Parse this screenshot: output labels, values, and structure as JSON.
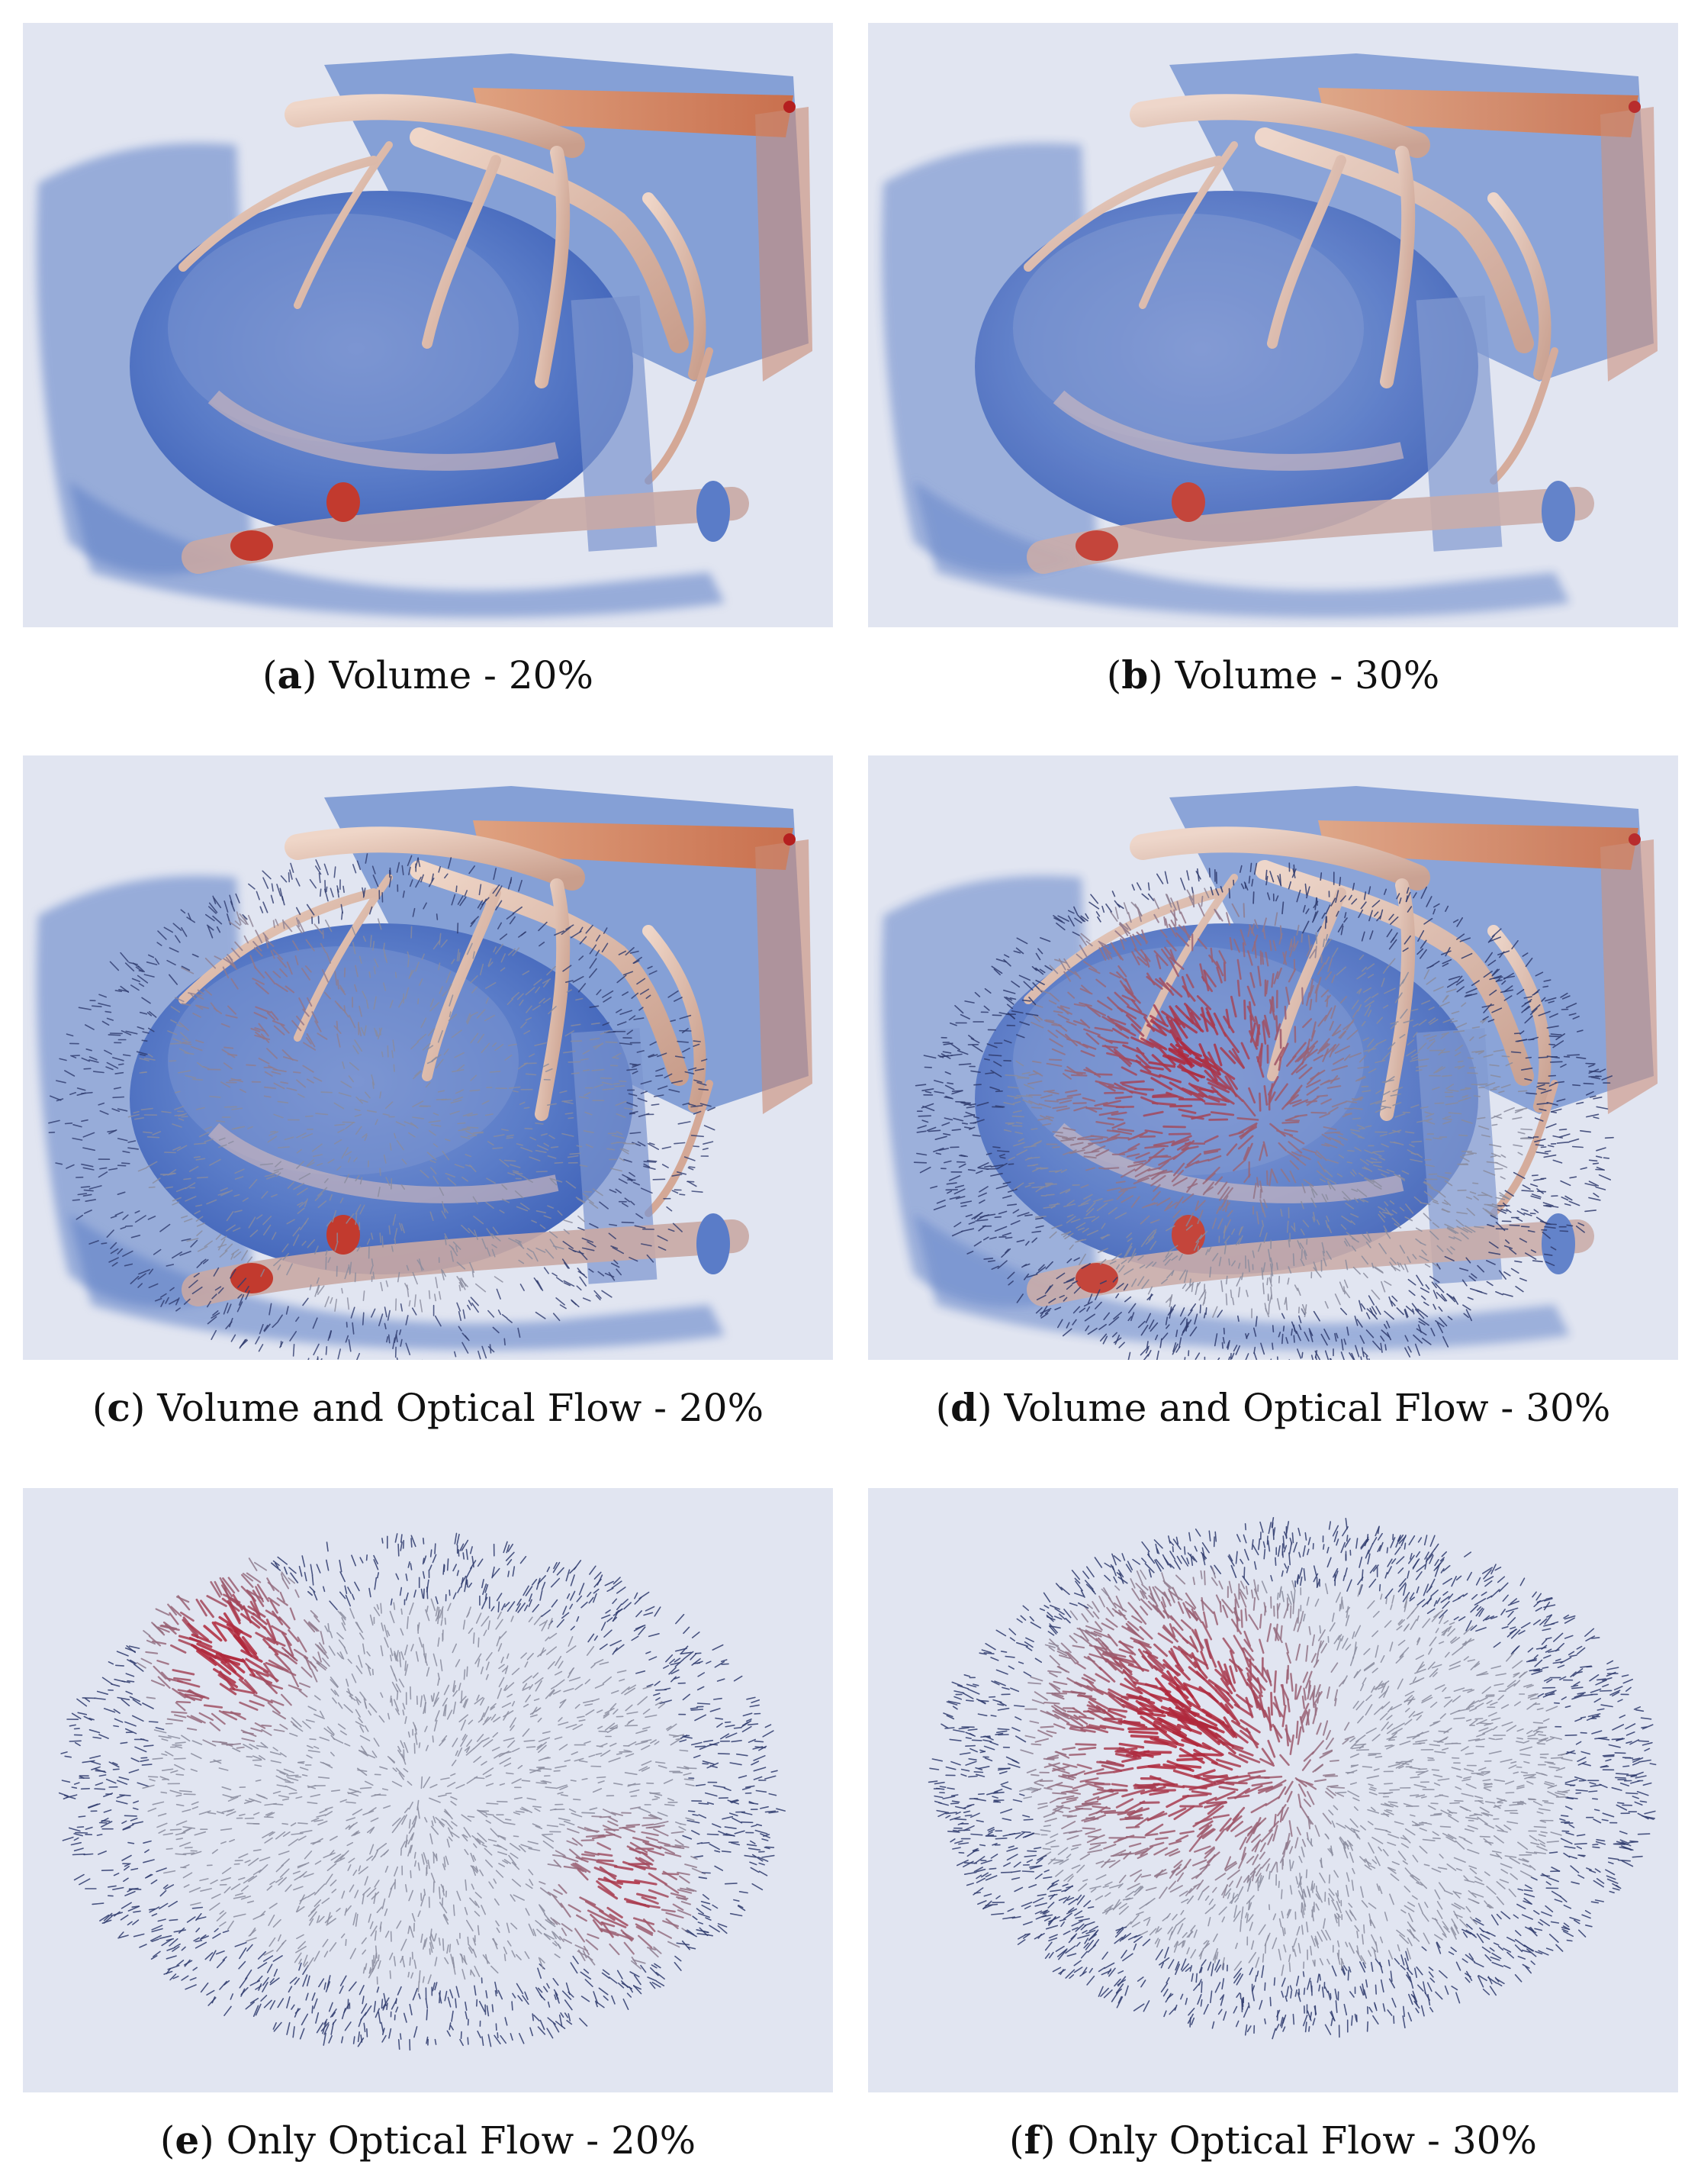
{
  "figure": {
    "panels": [
      {
        "id": "a",
        "label": "a",
        "caption": "Volume - 20%",
        "layers": [
          "volume"
        ],
        "frame": "20%"
      },
      {
        "id": "b",
        "label": "b",
        "caption": "Volume - 30%",
        "layers": [
          "volume"
        ],
        "frame": "30%"
      },
      {
        "id": "c",
        "label": "c",
        "caption": "Volume and Optical Flow - 20%",
        "layers": [
          "volume",
          "optical-flow"
        ],
        "frame": "20%"
      },
      {
        "id": "d",
        "label": "d",
        "caption": "Volume and Optical Flow - 30%",
        "layers": [
          "volume",
          "optical-flow"
        ],
        "frame": "30%"
      },
      {
        "id": "e",
        "label": "e",
        "caption": "Only Optical Flow - 20%",
        "layers": [
          "optical-flow"
        ],
        "frame": "20%"
      },
      {
        "id": "f",
        "label": "f",
        "caption": "Only Optical Flow - 30%",
        "layers": [
          "optical-flow"
        ],
        "frame": "30%"
      }
    ]
  },
  "colors": {
    "panel_background": "#e1e5f1",
    "volume_blue": "#4f71c2",
    "vessel_tan": "#d8b8a8",
    "vessel_orange": "#dd8a5d",
    "flow_red": "#b0283c",
    "flow_gray": "#8a8c9e",
    "flow_navy": "#2f3b6e"
  }
}
